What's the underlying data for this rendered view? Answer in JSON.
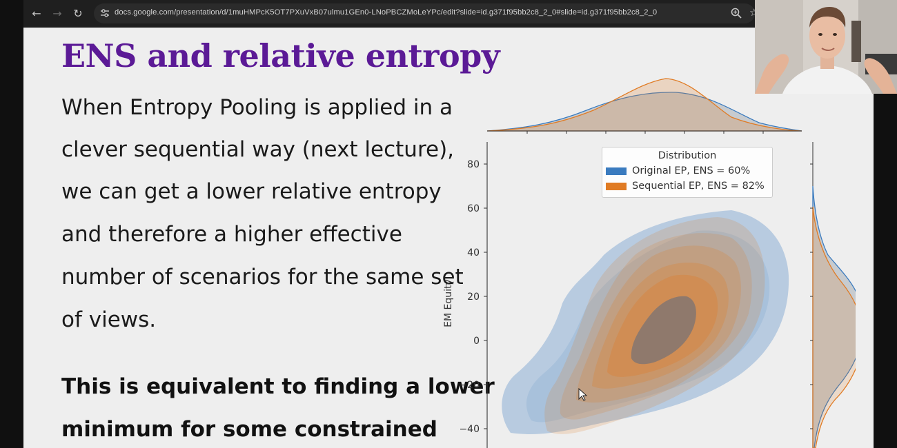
{
  "browser": {
    "url": "docs.google.com/presentation/d/1muHMPcK5OT7PXuVxB07ulmu1GEn0-LNoPBCZMoLeYPc/edit?slide=id.g371f95bb2c8_2_0#slide=id.g371f95bb2c8_2_0",
    "icons": [
      "back-icon",
      "forward-icon",
      "reload-icon",
      "site-settings-icon",
      "zoom-icon",
      "bookmark-star-icon"
    ]
  },
  "slide": {
    "title": "ENS and relative entropy",
    "body_lines": [
      "When Entropy Pooling is applied in a",
      "clever sequential way (next lecture),",
      "we can get a lower relative entropy",
      "and therefore a higher effective",
      "number of scenarios for the same set",
      "of views."
    ],
    "bold_lines": [
      "This is equivalent to finding a lower",
      "minimum for some constrained"
    ]
  },
  "chart_data": {
    "type": "kde-joint",
    "ylabel": "EM Equity",
    "yticks": [
      80,
      60,
      40,
      20,
      0,
      -20,
      -40
    ],
    "ytick_labels": [
      "80",
      "60",
      "40",
      "20",
      "0",
      "−20",
      "−40"
    ],
    "ylim": [
      -46,
      92
    ],
    "legend": {
      "title": "Distribution",
      "placement": "upper-right",
      "entries": [
        {
          "label": "Original EP, ENS = 60%",
          "color": "#3a7bbf"
        },
        {
          "label": "Sequential EP, ENS = 82%",
          "color": "#e07b24"
        }
      ]
    },
    "series_colors": {
      "original": "#3a7bbf",
      "sequential": "#e07b24"
    }
  }
}
